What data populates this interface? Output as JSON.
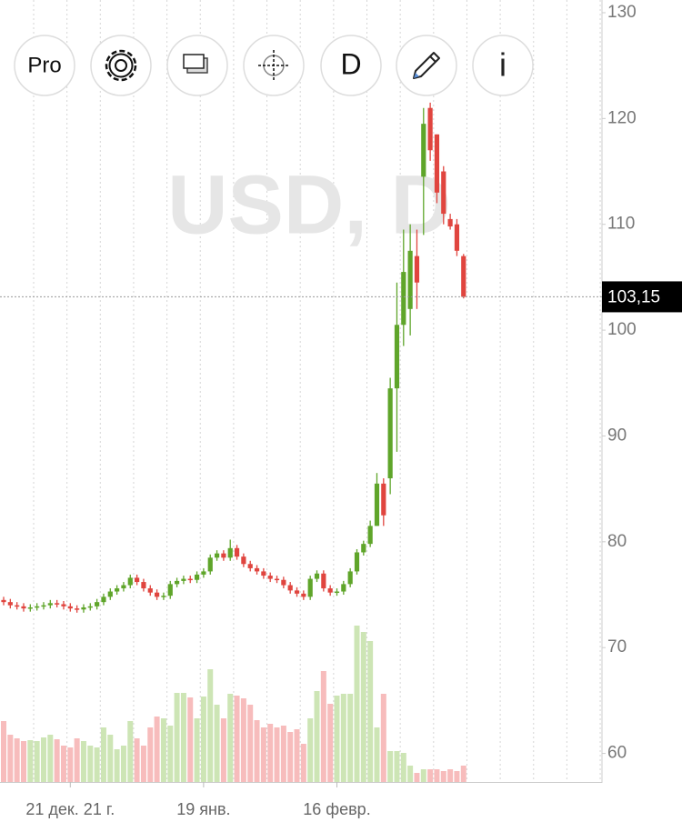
{
  "toolbar": {
    "pro": "Pro",
    "interval": "D",
    "info": "i"
  },
  "chart_data": {
    "type": "candlestick",
    "watermark": "USD, D",
    "up_color": "#5fa52a",
    "down_color": "#e0453f",
    "up_volume_color": "#cde5b5",
    "down_volume_color": "#f7bcbc",
    "ylim": [
      57.3,
      131.2
    ],
    "yticks": [
      60,
      70,
      80,
      90,
      100,
      110,
      120,
      130
    ],
    "xticks": [
      {
        "value": 10,
        "label": "21 дек. 21 г."
      },
      {
        "value": 30,
        "label": "19 янв."
      },
      {
        "value": 50,
        "label": "16 февр."
      }
    ],
    "last_price": {
      "value": 103.15,
      "label": "103,15"
    },
    "open": [
      74.5,
      74.3,
      74.0,
      73.9,
      73.7,
      73.8,
      73.9,
      74.0,
      74.2,
      74.1,
      73.9,
      73.7,
      73.6,
      73.8,
      73.9,
      74.3,
      74.8,
      75.3,
      75.6,
      75.9,
      76.6,
      76.2,
      75.6,
      75.2,
      74.8,
      74.9,
      76.0,
      76.3,
      76.5,
      76.4,
      76.9,
      77.2,
      78.5,
      78.9,
      78.5,
      79.4,
      78.6,
      77.9,
      77.5,
      77.2,
      76.8,
      76.5,
      76.4,
      75.9,
      75.4,
      75.1,
      74.8,
      76.5,
      77.0,
      75.6,
      75.2,
      75.3,
      76.0,
      77.2,
      79.0,
      79.8,
      81.5,
      85.5,
      86.0,
      94.5,
      100.5,
      102.0,
      107.0,
      114.5,
      121.0,
      118.5,
      115.0,
      110.5,
      110.0,
      107.0
    ],
    "high": [
      74.8,
      74.6,
      74.3,
      74.2,
      74.1,
      74.2,
      74.3,
      74.5,
      74.5,
      74.4,
      74.2,
      74.0,
      74.1,
      74.2,
      74.6,
      75.1,
      75.6,
      75.9,
      76.2,
      76.9,
      76.9,
      76.5,
      75.9,
      75.5,
      75.2,
      76.3,
      76.6,
      76.8,
      76.8,
      77.2,
      77.5,
      78.8,
      79.2,
      79.2,
      80.2,
      79.7,
      78.9,
      78.2,
      77.8,
      77.5,
      77.1,
      76.8,
      76.7,
      76.2,
      75.7,
      75.4,
      76.8,
      77.3,
      77.3,
      75.9,
      75.6,
      76.3,
      77.5,
      79.3,
      80.1,
      82.0,
      86.5,
      86.0,
      95.5,
      104.5,
      109.5,
      110.0,
      109.5,
      121.0,
      121.5,
      118.5,
      115.5,
      111.0,
      110.5,
      107.2
    ],
    "low": [
      74.0,
      73.7,
      73.6,
      73.4,
      73.4,
      73.5,
      73.6,
      73.7,
      73.8,
      73.6,
      73.4,
      73.3,
      73.3,
      73.5,
      73.6,
      74.0,
      74.5,
      75.0,
      75.3,
      75.6,
      75.9,
      75.3,
      74.9,
      74.5,
      74.5,
      74.6,
      75.7,
      76.0,
      76.1,
      76.1,
      76.6,
      76.9,
      78.2,
      78.2,
      78.2,
      78.3,
      77.6,
      77.2,
      76.9,
      76.5,
      76.2,
      76.1,
      75.6,
      75.1,
      74.8,
      74.5,
      74.5,
      76.2,
      75.3,
      74.9,
      74.9,
      75.0,
      75.7,
      76.9,
      78.7,
      79.5,
      81.5,
      81.5,
      84.5,
      88.5,
      98.5,
      99.5,
      102.0,
      109.0,
      116.0,
      112.0,
      110.0,
      109.5,
      107.0,
      103.0
    ],
    "close": [
      74.3,
      74.0,
      73.9,
      73.7,
      73.8,
      73.9,
      74.0,
      74.2,
      74.1,
      73.9,
      73.7,
      73.6,
      73.8,
      73.9,
      74.3,
      74.8,
      75.3,
      75.6,
      75.9,
      76.6,
      76.2,
      75.6,
      75.2,
      74.8,
      74.9,
      76.0,
      76.3,
      76.5,
      76.4,
      76.9,
      77.2,
      78.5,
      78.9,
      78.5,
      79.4,
      78.6,
      77.9,
      77.5,
      77.2,
      76.8,
      76.5,
      76.4,
      75.9,
      75.4,
      75.1,
      74.8,
      76.5,
      77.0,
      75.6,
      75.2,
      75.3,
      76.0,
      77.2,
      79.0,
      79.8,
      81.5,
      85.5,
      82.5,
      94.5,
      100.5,
      105.5,
      107.5,
      104.5,
      119.5,
      117.0,
      113.0,
      111.0,
      109.8,
      107.5,
      103.15
    ],
    "volume": [
      67,
      52,
      48,
      45,
      46,
      45,
      49,
      52,
      47,
      40,
      38,
      48,
      45,
      40,
      38,
      60,
      52,
      36,
      40,
      67,
      48,
      40,
      60,
      72,
      70,
      62,
      98,
      98,
      93,
      70,
      94,
      124,
      85,
      70,
      97,
      95,
      92,
      85,
      68,
      60,
      64,
      60,
      62,
      55,
      58,
      42,
      70,
      100,
      122,
      86,
      95,
      97,
      97,
      172,
      165,
      155,
      60,
      97,
      34,
      34,
      32,
      18,
      10,
      14,
      14,
      14,
      12,
      14,
      12,
      18
    ]
  }
}
